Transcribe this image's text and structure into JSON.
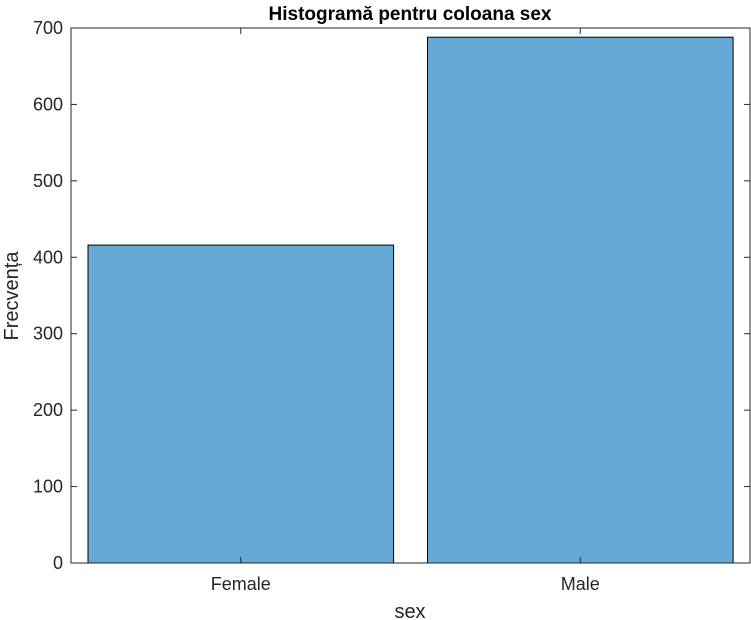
{
  "chart_data": {
    "type": "bar",
    "title": "Histogramă pentru coloana sex",
    "xlabel": "sex",
    "ylabel": "Frecvența",
    "categories": [
      "Female",
      "Male"
    ],
    "values": [
      416,
      688
    ],
    "ylim": [
      0,
      700
    ],
    "yticks": [
      "0",
      "100",
      "200",
      "300",
      "400",
      "500",
      "600",
      "700"
    ],
    "grid": false,
    "bar_color": "#66a9d6",
    "edge_color": "#000000"
  }
}
